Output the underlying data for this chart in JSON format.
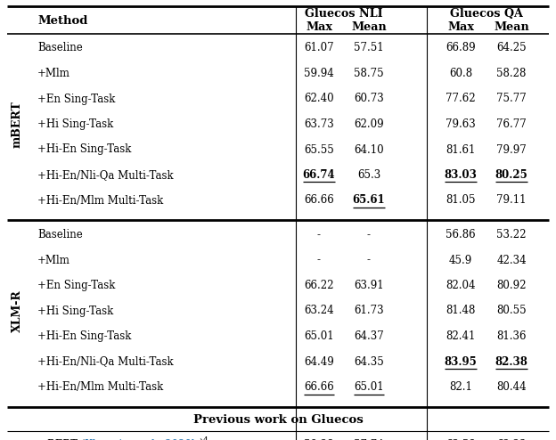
{
  "mbert_rows": [
    [
      "Baseline",
      "61.07",
      "57.51",
      "66.89",
      "64.25",
      false,
      false,
      false,
      false
    ],
    [
      "+MLM",
      "59.94",
      "58.75",
      "60.8",
      "58.28",
      false,
      false,
      false,
      false
    ],
    [
      "+EN SING-TASK",
      "62.40",
      "60.73",
      "77.62",
      "75.77",
      false,
      false,
      false,
      false
    ],
    [
      "+HI SING-TASK",
      "63.73",
      "62.09",
      "79.63",
      "76.77",
      false,
      false,
      false,
      false
    ],
    [
      "+HI-EN SING-TASK",
      "65.55",
      "64.10",
      "81.61",
      "79.97",
      false,
      false,
      false,
      false
    ],
    [
      "+HI-EN/NLI-QA MULTI-TASK",
      "66.74",
      "65.3",
      "83.03",
      "80.25",
      true,
      false,
      true,
      true
    ],
    [
      "+HI-EN/MLM MULTI-TASK",
      "66.66",
      "65.61",
      "81.05",
      "79.11",
      false,
      true,
      false,
      false
    ]
  ],
  "mbert_underline": [
    [
      5,
      1
    ],
    [
      6,
      2
    ],
    [
      5,
      3
    ],
    [
      5,
      4
    ]
  ],
  "xlmr_rows": [
    [
      "Baseline",
      "-",
      "-",
      "56.86",
      "53.22",
      false,
      false,
      false,
      false
    ],
    [
      "+MLM",
      "-",
      "-",
      "45.9",
      "42.34",
      false,
      false,
      false,
      false
    ],
    [
      "+EN SING-TASK",
      "66.22",
      "63.91",
      "82.04",
      "80.92",
      false,
      false,
      false,
      false
    ],
    [
      "+HI SING-TASK",
      "63.24",
      "61.73",
      "81.48",
      "80.55",
      false,
      false,
      false,
      false
    ],
    [
      "+HI-EN SING-TASK",
      "65.01",
      "64.37",
      "82.41",
      "81.36",
      false,
      false,
      false,
      false
    ],
    [
      "+HI-EN/NLI-QA MULTI-TASK",
      "64.49",
      "64.35",
      "83.95",
      "82.38",
      false,
      false,
      true,
      true
    ],
    [
      "+HI-EN/MLM MULTI-TASK",
      "66.66",
      "65.01",
      "82.1",
      "80.44",
      false,
      false,
      false,
      false
    ]
  ],
  "xlmr_underline": [
    [
      6,
      1
    ],
    [
      6,
      2
    ],
    [
      5,
      3
    ],
    [
      5,
      4
    ]
  ],
  "link_color": "#1a6faf",
  "bg_color": "#ffffff"
}
